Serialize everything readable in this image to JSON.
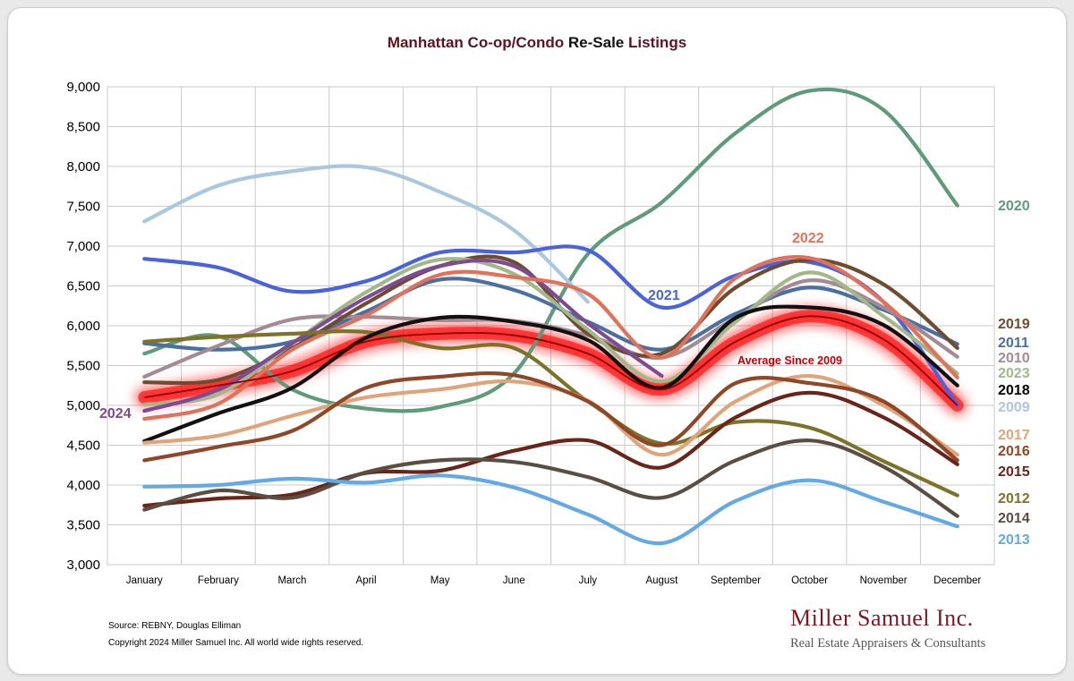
{
  "title": {
    "part1": "Manhattan Co-op/Condo ",
    "part2": "Re-Sale",
    "part3": " Listings"
  },
  "colors": {
    "title_dark": "#5b1420",
    "title_black": "#111111",
    "grid": "#c9c9c9",
    "avg_glow": "#ff0000",
    "avg_line": "#8b0000",
    "avg_label": "#c0000a"
  },
  "footnote": {
    "source": "Source: REBNY, Douglas Elliman",
    "copyright": "Copyright 2024 Miller Samuel Inc.  All world wide rights reserved."
  },
  "brand": {
    "name": "Miller Samuel Inc.",
    "tagline": "Real Estate Appraisers & Consultants"
  },
  "chart_data": {
    "type": "line",
    "categories": [
      "January",
      "February",
      "March",
      "April",
      "May",
      "June",
      "July",
      "August",
      "September",
      "October",
      "November",
      "December"
    ],
    "ylim": [
      3000,
      9000
    ],
    "yticks": [
      "3,000",
      "3,500",
      "4,000",
      "4,500",
      "5,000",
      "5,500",
      "6,000",
      "6,500",
      "7,000",
      "7,500",
      "8,000",
      "8,500",
      "9,000"
    ],
    "grid": true,
    "series": [
      {
        "name": "2020",
        "color": "#5f9a7b",
        "values": [
          5650,
          5870,
          5200,
          4960,
          4980,
          5400,
          6900,
          7550,
          8420,
          8950,
          8710,
          7510
        ]
      },
      {
        "name": "2009",
        "color": "#a9c7df",
        "values": [
          7310,
          7760,
          7940,
          7990,
          7680,
          7200,
          6300,
          null,
          null,
          null,
          null,
          null
        ]
      },
      {
        "name": "2021",
        "color": "#4a62dd",
        "values": [
          6840,
          6730,
          6430,
          6560,
          6920,
          6920,
          6950,
          6230,
          6630,
          6800,
          6300,
          5000
        ]
      },
      {
        "name": "2011",
        "color": "#4a6fa0",
        "values": [
          5780,
          5700,
          5800,
          6180,
          6580,
          6450,
          6050,
          5700,
          6150,
          6480,
          6200,
          5770
        ]
      },
      {
        "name": "2010",
        "color": "#a48a93",
        "values": [
          5360,
          5750,
          6080,
          6110,
          6070,
          6060,
          5880,
          5600,
          6100,
          6570,
          6230,
          5610
        ]
      },
      {
        "name": "2019",
        "color": "#6d4c2f",
        "values": [
          5290,
          5320,
          5720,
          6280,
          6750,
          6800,
          5900,
          5650,
          6480,
          6830,
          6520,
          5720
        ]
      },
      {
        "name": "2023",
        "color": "#a3b889",
        "values": [
          5010,
          5140,
          5780,
          6420,
          6830,
          6650,
          5950,
          5300,
          6050,
          6670,
          6120,
          5400
        ]
      },
      {
        "name": "2024",
        "color": "#7f4a94",
        "values": [
          4930,
          5200,
          5780,
          6350,
          6750,
          6750,
          6030,
          5370,
          null,
          null,
          null,
          null
        ]
      },
      {
        "name": "2022",
        "color": "#e2715a",
        "values": [
          4830,
          5020,
          5700,
          6130,
          6640,
          6610,
          6400,
          5600,
          6600,
          6850,
          6300,
          5350
        ]
      },
      {
        "name": "2012",
        "color": "#7d7228",
        "values": [
          5800,
          5860,
          5900,
          5920,
          5720,
          5720,
          5050,
          4520,
          4790,
          4720,
          4300,
          3870
        ]
      },
      {
        "name": "2018",
        "color": "#111111",
        "values": [
          4550,
          4900,
          5220,
          5850,
          6100,
          6050,
          5820,
          5220,
          6100,
          6230,
          6010,
          5250
        ]
      },
      {
        "name": "2017",
        "color": "#e0a47a",
        "values": [
          4530,
          4620,
          4870,
          5100,
          5200,
          5300,
          5060,
          4380,
          5050,
          5370,
          5000,
          4380
        ]
      },
      {
        "name": "2016",
        "color": "#8f4727",
        "values": [
          4310,
          4480,
          4680,
          5220,
          5360,
          5380,
          5050,
          4500,
          5280,
          5280,
          5050,
          4310
        ]
      },
      {
        "name": "2015",
        "color": "#6a2418",
        "values": [
          3740,
          3830,
          3880,
          4150,
          4180,
          4430,
          4560,
          4220,
          4850,
          5160,
          4850,
          4260
        ]
      },
      {
        "name": "2014",
        "color": "#5c4d42",
        "values": [
          3690,
          3930,
          3840,
          4160,
          4310,
          4290,
          4100,
          3840,
          4310,
          4560,
          4230,
          3610
        ]
      },
      {
        "name": "2013",
        "color": "#63a9e6",
        "values": [
          3980,
          4000,
          4080,
          4030,
          4120,
          3970,
          3630,
          3270,
          3800,
          4060,
          3790,
          3480
        ]
      }
    ],
    "average": {
      "name": "Average  Since 2009",
      "values": [
        5100,
        5250,
        5430,
        5800,
        5900,
        5880,
        5650,
        5200,
        5800,
        6120,
        5830,
        5000
      ]
    }
  }
}
